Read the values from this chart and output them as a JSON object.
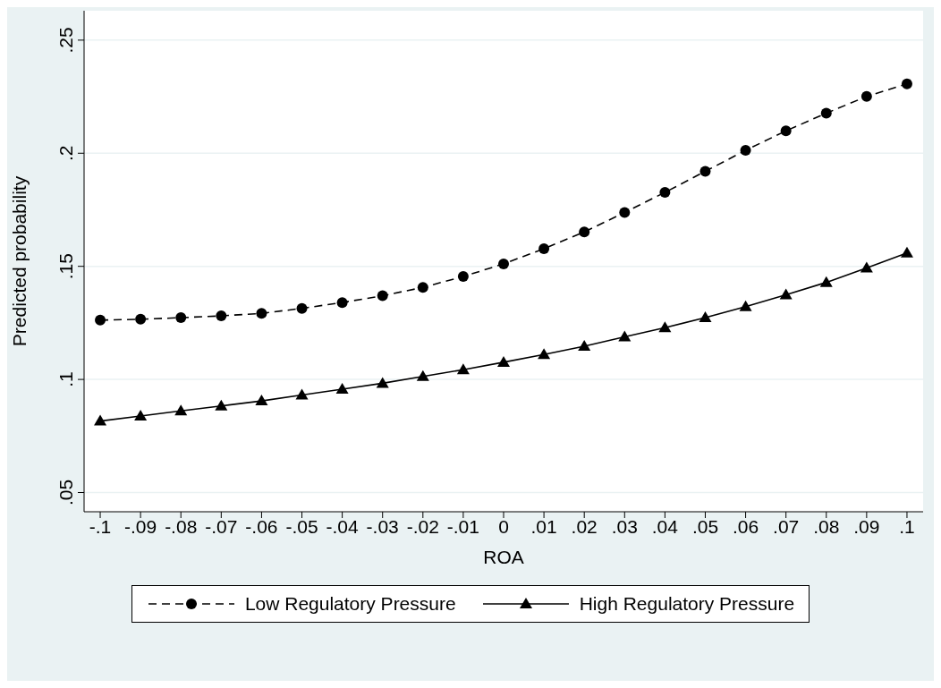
{
  "chart_data": {
    "type": "line",
    "xlabel": "ROA",
    "ylabel": "Predicted probability",
    "x": [
      -0.1,
      -0.09,
      -0.08,
      -0.07,
      -0.06,
      -0.05,
      -0.04,
      -0.03,
      -0.02,
      -0.01,
      0,
      0.01,
      0.02,
      0.03,
      0.04,
      0.05,
      0.06,
      0.07,
      0.08,
      0.09,
      0.1
    ],
    "series": [
      {
        "name": "Low Regulatory Pressure",
        "color": "#000000",
        "marker": "circle",
        "line_style": "dashed",
        "values": [
          0.1262,
          0.1266,
          0.1273,
          0.1281,
          0.1292,
          0.1314,
          0.134,
          0.137,
          0.1407,
          0.1455,
          0.1511,
          0.1578,
          0.1652,
          0.1738,
          0.1827,
          0.192,
          0.2013,
          0.2099,
          0.2177,
          0.2251,
          0.2307
        ]
      },
      {
        "name": "High Regulatory Pressure",
        "color": "#000000",
        "marker": "triangle",
        "line_style": "solid",
        "values": [
          0.0816,
          0.0838,
          0.0861,
          0.0883,
          0.0905,
          0.0931,
          0.0957,
          0.0983,
          0.1013,
          0.1043,
          0.1076,
          0.111,
          0.1147,
          0.1188,
          0.1229,
          0.1273,
          0.1322,
          0.1374,
          0.1429,
          0.1493,
          0.1559
        ]
      }
    ],
    "xlim": [
      -0.104,
      0.104
    ],
    "xticks": [
      {
        "value": -0.1,
        "label": "-.1"
      },
      {
        "value": -0.09,
        "label": "-.09"
      },
      {
        "value": -0.08,
        "label": "-.08"
      },
      {
        "value": -0.07,
        "label": "-.07"
      },
      {
        "value": -0.06,
        "label": "-.06"
      },
      {
        "value": -0.05,
        "label": "-.05"
      },
      {
        "value": -0.04,
        "label": "-.04"
      },
      {
        "value": -0.03,
        "label": "-.03"
      },
      {
        "value": -0.02,
        "label": "-.02"
      },
      {
        "value": -0.01,
        "label": "-.01"
      },
      0,
      {
        "value": 0.01,
        "label": ".01"
      },
      {
        "value": 0.02,
        "label": ".02"
      },
      {
        "value": 0.03,
        "label": ".03"
      },
      {
        "value": 0.04,
        "label": ".04"
      },
      {
        "value": 0.05,
        "label": ".05"
      },
      {
        "value": 0.06,
        "label": ".06"
      },
      {
        "value": 0.07,
        "label": ".07"
      },
      {
        "value": 0.08,
        "label": ".08"
      },
      {
        "value": 0.09,
        "label": ".09"
      },
      {
        "value": 0.1,
        "label": ".1"
      }
    ],
    "ylim": [
      0.0415,
      0.263
    ],
    "yticks": [
      {
        "value": 0.05,
        "label": ".05"
      },
      {
        "value": 0.1,
        "label": ".1"
      },
      {
        "value": 0.15,
        "label": ".15"
      },
      {
        "value": 0.2,
        "label": ".2"
      },
      {
        "value": 0.25,
        "label": ".25"
      }
    ],
    "grid": "y",
    "legend": "bottom"
  }
}
